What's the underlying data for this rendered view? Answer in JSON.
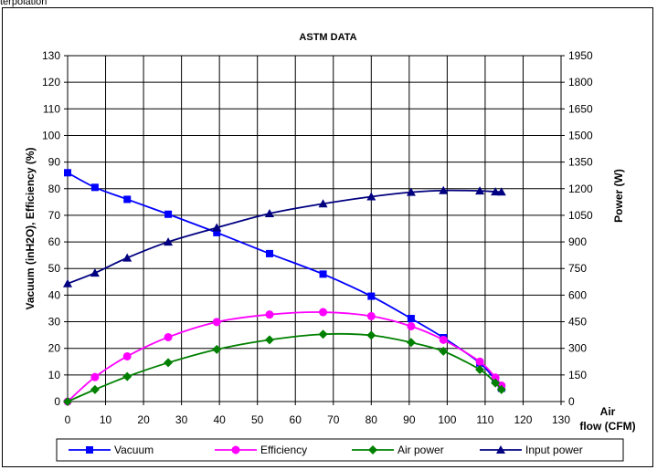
{
  "header_text": "terpolation",
  "chart_data": {
    "type": "line",
    "title": "ASTM DATA",
    "xlabel": "Air flow (CFM)",
    "xlabel_lines": [
      "Air",
      "flow (CFM)"
    ],
    "ylabel_left": "Vacuum (inH2O), Efficiency (%)",
    "ylabel_right": "Power (W)",
    "xlim": [
      0,
      130
    ],
    "ylim_left": [
      0,
      130
    ],
    "ylim_right": [
      0,
      1950
    ],
    "x_ticks": [
      0,
      10,
      20,
      30,
      40,
      50,
      60,
      70,
      80,
      90,
      100,
      110,
      120,
      130
    ],
    "y_ticks_left": [
      0,
      10,
      20,
      30,
      40,
      50,
      60,
      70,
      80,
      90,
      100,
      110,
      120,
      130
    ],
    "y_ticks_right": [
      0,
      150,
      300,
      450,
      600,
      750,
      900,
      1050,
      1200,
      1350,
      1500,
      1650,
      1800,
      1950
    ],
    "grid": true,
    "legend_position": "bottom",
    "series": [
      {
        "name": "Vacuum",
        "axis": "left",
        "color": "#0000ff",
        "marker": "square",
        "x": [
          0,
          7.2,
          15.7,
          26.5,
          39.3,
          53.2,
          67.3,
          80.0,
          90.5,
          99.0,
          108.6,
          112.7,
          114.3
        ],
        "y": [
          86.0,
          80.5,
          76.0,
          70.4,
          63.5,
          55.6,
          47.9,
          39.6,
          31.2,
          24.0,
          14.5,
          8.0,
          5.0
        ]
      },
      {
        "name": "Efficiency",
        "axis": "left",
        "color": "#ff00ff",
        "marker": "circle",
        "x": [
          0,
          7.2,
          15.7,
          26.5,
          39.3,
          53.2,
          67.3,
          80.0,
          90.5,
          99.0,
          108.6,
          112.7,
          114.3
        ],
        "y": [
          0,
          9.2,
          17.0,
          24.2,
          29.9,
          32.7,
          33.6,
          32.1,
          28.3,
          23.2,
          15.0,
          9.0,
          6.0
        ]
      },
      {
        "name": "Air power",
        "axis": "left",
        "color": "#008000",
        "marker": "diamond",
        "x": [
          0,
          7.2,
          15.7,
          26.5,
          39.3,
          53.2,
          67.3,
          80.0,
          90.5,
          99.0,
          108.6,
          112.7,
          114.3
        ],
        "y": [
          0,
          4.5,
          9.4,
          14.6,
          19.6,
          23.2,
          25.3,
          24.9,
          22.2,
          18.9,
          12.0,
          7.0,
          4.5
        ]
      },
      {
        "name": "Input power",
        "axis": "right",
        "color": "#000080",
        "marker": "triangle",
        "x": [
          0,
          7.2,
          15.7,
          26.5,
          39.3,
          53.2,
          67.3,
          80.0,
          90.5,
          99.0,
          108.6,
          112.7,
          114.3
        ],
        "y": [
          665,
          725,
          810,
          900,
          980,
          1060,
          1115,
          1155,
          1180,
          1190,
          1188,
          1183,
          1182
        ]
      }
    ]
  }
}
